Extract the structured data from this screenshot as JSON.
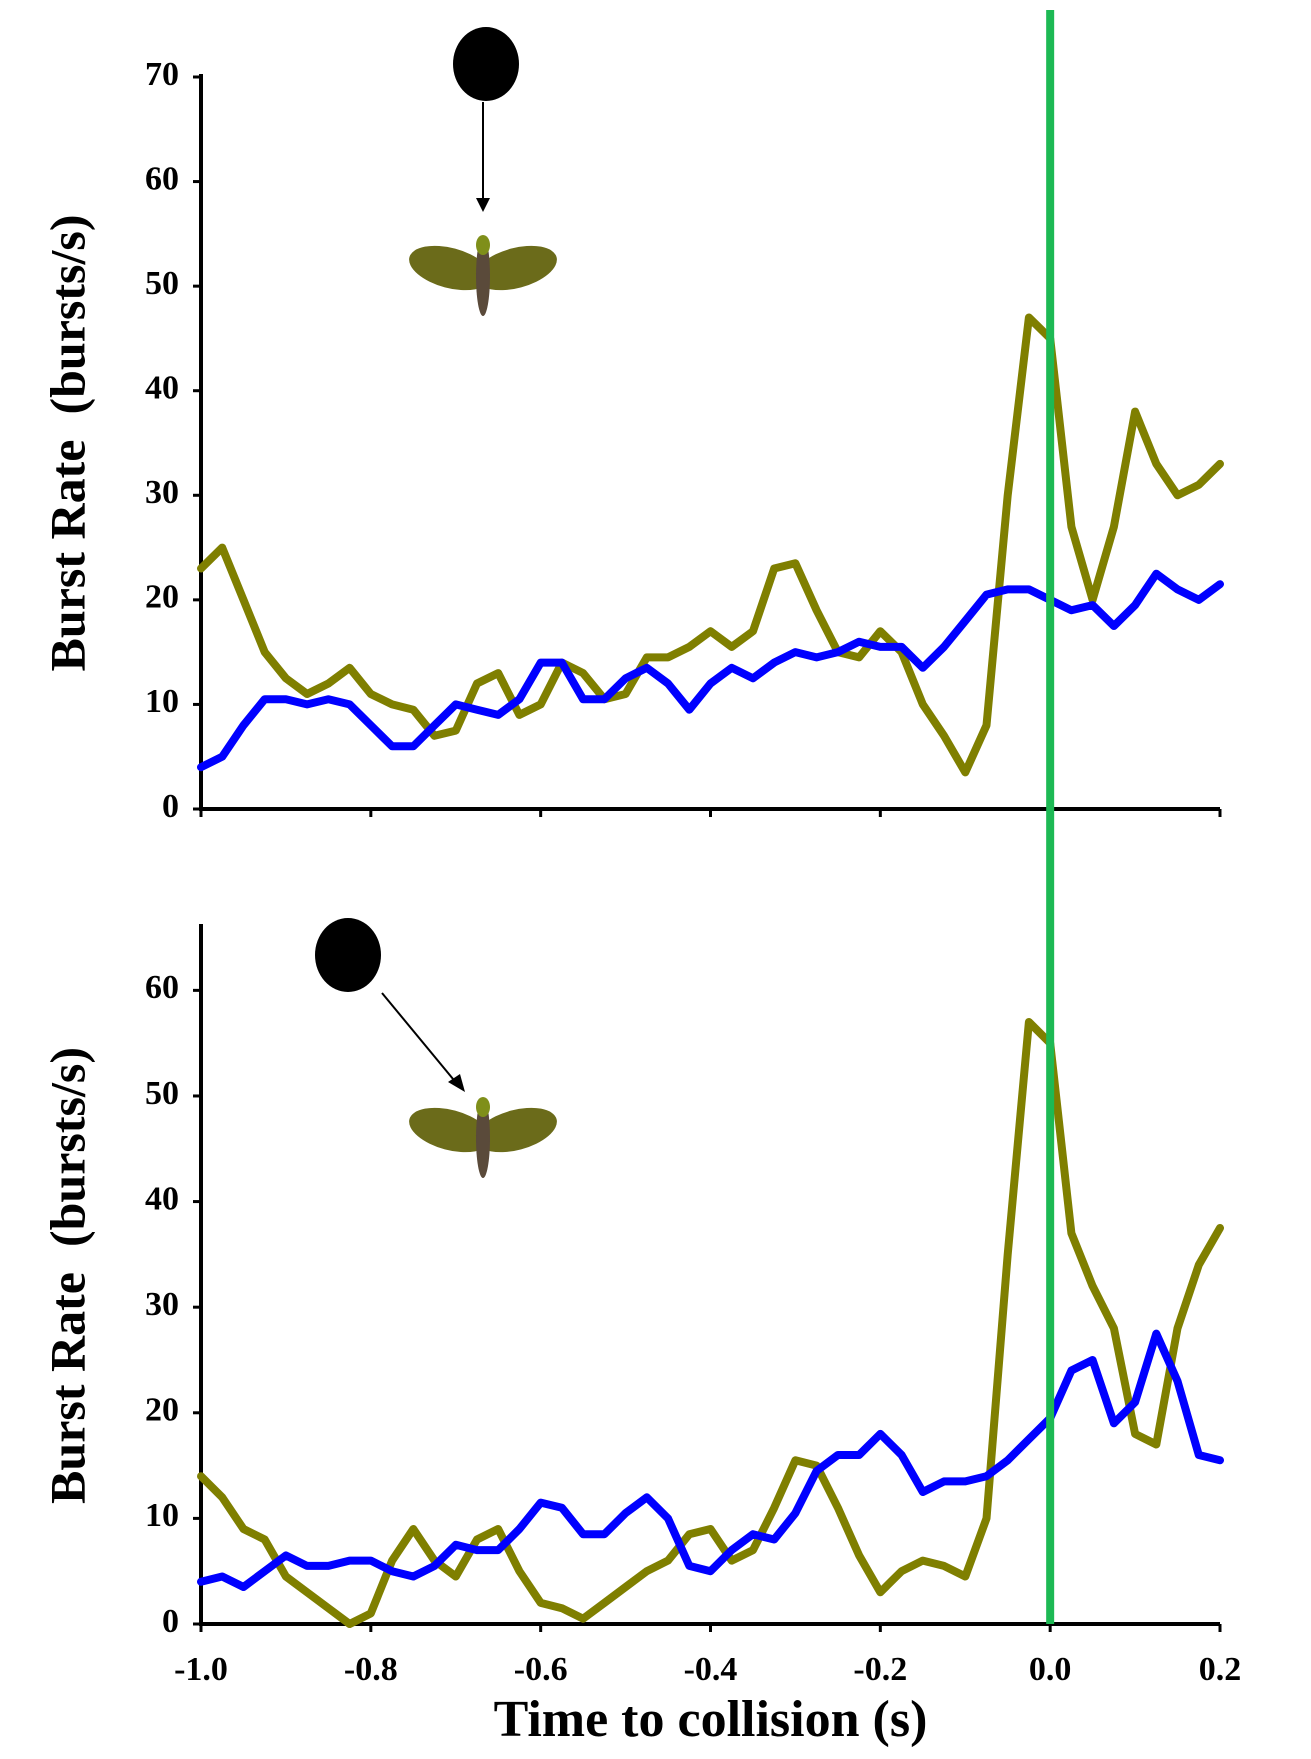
{
  "chart_data": [
    {
      "type": "line",
      "y_label": "Burst Rate  (bursts/s)",
      "x": [
        -1,
        -0.975,
        -0.95,
        -0.925,
        -0.9,
        -0.875,
        -0.85,
        -0.825,
        -0.8,
        -0.775,
        -0.75,
        -0.725,
        -0.7,
        -0.675,
        -0.65,
        -0.625,
        -0.6,
        -0.575,
        -0.55,
        -0.525,
        -0.5,
        -0.475,
        -0.45,
        -0.425,
        -0.4,
        -0.375,
        -0.35,
        -0.325,
        -0.3,
        -0.275,
        -0.25,
        -0.225,
        -0.2,
        -0.175,
        -0.15,
        -0.125,
        -0.1,
        -0.075,
        -0.05,
        -0.025,
        0,
        0.025,
        0.05,
        0.075,
        0.1,
        0.125,
        0.15,
        0.175,
        0.2
      ],
      "series": [
        {
          "color": "#7f7f00",
          "values": [
            23,
            25,
            20,
            15,
            12.5,
            11,
            12,
            13.5,
            11,
            10,
            9.5,
            7,
            7.5,
            12,
            13,
            9,
            10,
            14,
            13,
            10.5,
            11,
            14.5,
            14.5,
            15.5,
            17,
            15.5,
            17,
            23,
            23.5,
            19,
            15,
            14.5,
            17,
            15,
            10,
            7,
            3.5,
            8,
            30,
            47,
            45,
            27,
            20,
            27,
            38,
            33,
            30,
            31,
            33
          ]
        },
        {
          "color": "#0000ff",
          "values": [
            4,
            5,
            8,
            10.5,
            10.5,
            10,
            10.5,
            10,
            8,
            6,
            6,
            8,
            10,
            9.5,
            9,
            10.5,
            14,
            14,
            10.5,
            10.5,
            12.5,
            13.5,
            12,
            9.5,
            12,
            13.5,
            12.5,
            14,
            15,
            14.5,
            15,
            16,
            15.5,
            15.5,
            13.5,
            15.5,
            18,
            20.5,
            21,
            21,
            20,
            19,
            19.5,
            17.5,
            19.5,
            22.5,
            21,
            20,
            21.5
          ]
        }
      ],
      "xlim": [
        -1,
        0.2
      ],
      "xticks": [
        -1,
        -0.8,
        -0.6,
        -0.4,
        -0.2,
        0,
        0.2
      ],
      "ylim": [
        0,
        70
      ],
      "yticks": [
        0,
        10,
        20,
        30,
        40,
        50,
        60,
        70
      ]
    },
    {
      "type": "line",
      "y_label": "Burst Rate  (bursts/s)",
      "x_label": "Time to collision (s)",
      "x": [
        -1,
        -0.975,
        -0.95,
        -0.925,
        -0.9,
        -0.875,
        -0.85,
        -0.825,
        -0.8,
        -0.775,
        -0.75,
        -0.725,
        -0.7,
        -0.675,
        -0.65,
        -0.625,
        -0.6,
        -0.575,
        -0.55,
        -0.525,
        -0.5,
        -0.475,
        -0.45,
        -0.425,
        -0.4,
        -0.375,
        -0.35,
        -0.325,
        -0.3,
        -0.275,
        -0.25,
        -0.225,
        -0.2,
        -0.175,
        -0.15,
        -0.125,
        -0.1,
        -0.075,
        -0.05,
        -0.025,
        0,
        0.025,
        0.05,
        0.075,
        0.1,
        0.125,
        0.15,
        0.175,
        0.2
      ],
      "series": [
        {
          "color": "#7f7f00",
          "values": [
            14,
            12,
            9,
            8,
            4.5,
            3,
            1.5,
            0,
            1,
            6,
            9,
            6,
            4.5,
            8,
            9,
            5,
            2,
            1.5,
            0.5,
            2,
            3.5,
            5,
            6,
            8.5,
            9,
            6,
            7,
            11,
            15.5,
            15,
            11,
            6.5,
            3,
            5,
            6,
            5.5,
            4.5,
            10,
            35,
            57,
            55,
            37,
            32,
            28,
            18,
            17,
            28,
            34,
            37.5
          ]
        },
        {
          "color": "#0000ff",
          "values": [
            4,
            4.5,
            3.5,
            5,
            6.5,
            5.5,
            5.5,
            6,
            6,
            5,
            4.5,
            5.5,
            7.5,
            7,
            7,
            9,
            11.5,
            11,
            8.5,
            8.5,
            10.5,
            12,
            10,
            5.5,
            5,
            7,
            8.5,
            8,
            10.5,
            14.5,
            16,
            16,
            18,
            16,
            12.5,
            13.5,
            13.5,
            14,
            15.5,
            17.5,
            19.5,
            24,
            25,
            19,
            21,
            27.5,
            23,
            16,
            15.5
          ]
        }
      ],
      "xlim": [
        -1,
        0.2
      ],
      "xticks": [
        {
          "value": -1,
          "label": "-1.0"
        },
        -0.8,
        -0.6,
        -0.4,
        -0.2,
        {
          "value": 0,
          "label": "0.0"
        },
        0.2
      ],
      "ylim": [
        0,
        66
      ],
      "yticks": [
        0,
        10,
        20,
        30,
        40,
        50,
        60
      ],
      "vline": {
        "x": 0,
        "color": "#1db954"
      }
    }
  ]
}
